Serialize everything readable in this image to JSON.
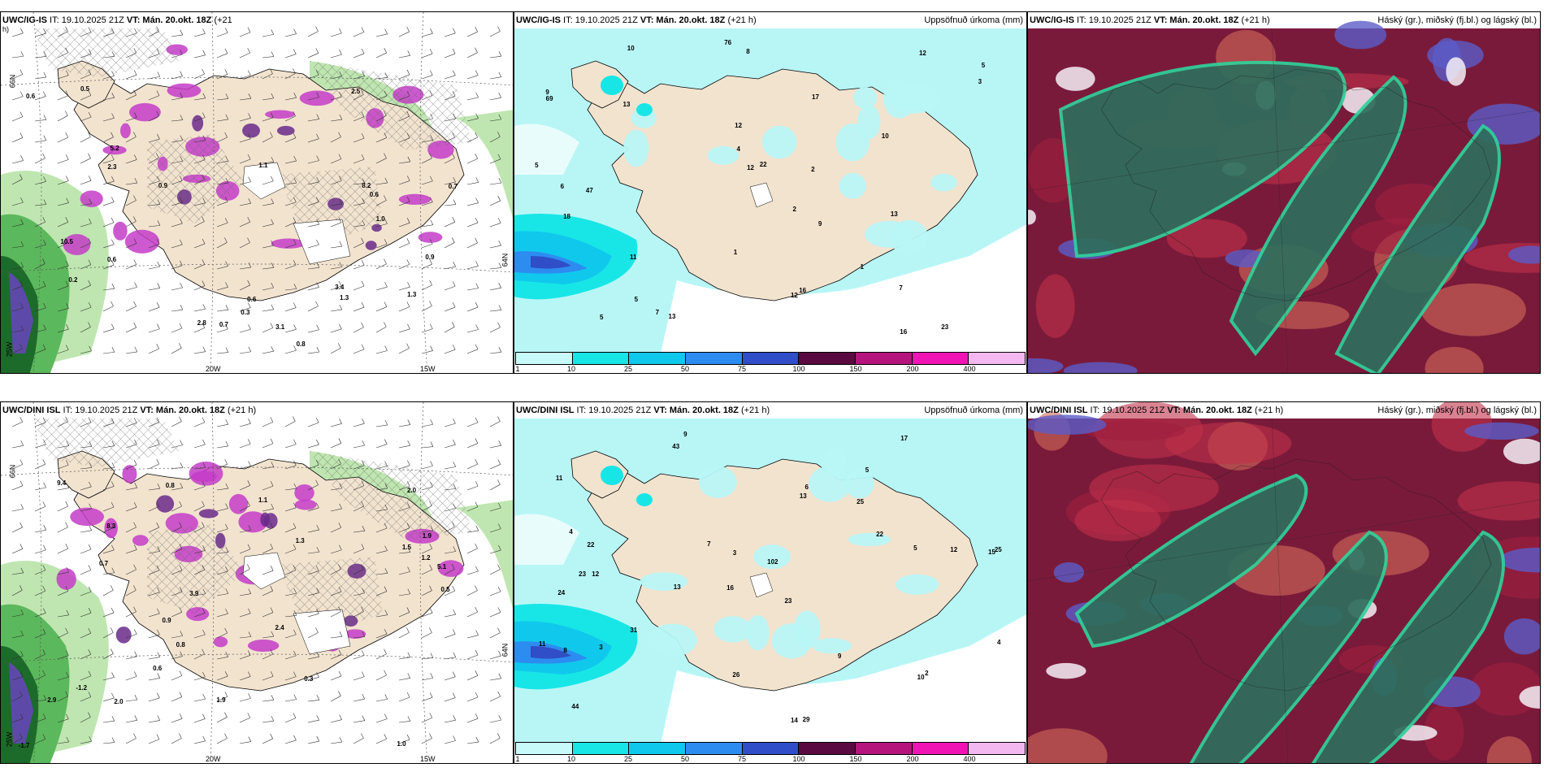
{
  "panels": [
    {
      "id": "p1",
      "header_model": "UWC/IG-IS",
      "header_it": "IT: 19.10.2025 21Z",
      "header_vt": "VT: Mán. 20.okt. 18Z",
      "header_lead": "(+21",
      "header_lead_cont": "h)",
      "right_title": "",
      "kind": "wind",
      "lon_labels": [
        "20W",
        "15W"
      ],
      "lat_labels": [
        "66N",
        "64N"
      ],
      "left_lon": "25W"
    },
    {
      "id": "p2",
      "header_model": "UWC/IG-IS",
      "header_it": "IT: 19.10.2025 21Z",
      "header_vt": "VT: Mán. 20.okt. 18Z",
      "header_lead": "(+21 h)",
      "right_title": "Uppsöfnuð úrkoma (mm)",
      "kind": "precip"
    },
    {
      "id": "p3",
      "header_model": "UWC/IG-IS",
      "header_it": "IT: 19.10.2025 21Z",
      "header_vt": "VT: Mán. 20.okt. 18Z",
      "header_lead": "(+21 h)",
      "right_title": "Háský (gr.), miðský (fj.bl.) og lágský (bl.)",
      "kind": "cloud"
    },
    {
      "id": "p4",
      "header_model": "UWC/DINI ISL",
      "header_it": "IT: 19.10.2025 21Z",
      "header_vt": "VT: Mán. 20.okt. 18Z",
      "header_lead": "(+21 h)",
      "right_title": "",
      "kind": "wind",
      "lon_labels": [
        "20W",
        "15W"
      ],
      "lat_labels": [
        "66N",
        "64N"
      ],
      "left_lon": "25W"
    },
    {
      "id": "p5",
      "header_model": "UWC/DINI ISL",
      "header_it": "IT: 19.10.2025 21Z",
      "header_vt": "VT: Mán. 20.okt. 18Z",
      "header_lead": "(+21 h)",
      "right_title": "Uppsöfnuð úrkoma (mm)",
      "kind": "precip"
    },
    {
      "id": "p6",
      "header_model": "UWC/DINI ISL",
      "header_it": "IT: 19.10.2025 21Z",
      "header_vt": "VT: Mán. 20.okt. 18Z",
      "header_lead": "(+21 h)",
      "right_title": "Háský (gr.), miðský (fj.bl.) og lágský (bl.)",
      "kind": "cloud"
    }
  ],
  "precip_legend": {
    "ticks": [
      "1",
      "10",
      "25",
      "50",
      "75",
      "100",
      "150",
      "200",
      "400"
    ],
    "colors": [
      "#c8fafa",
      "#18e6e6",
      "#10c8ec",
      "#2d8cf0",
      "#2f4ec8",
      "#5a0a40",
      "#b4147c",
      "#f014b4",
      "#f4b8f0"
    ]
  },
  "precip_values_top": [
    "5",
    "8",
    "10",
    "5",
    "9",
    "23",
    "47",
    "17",
    "12",
    "12",
    "22",
    "13",
    "76",
    "69",
    "13",
    "11",
    "16",
    "6",
    "2",
    "1",
    "1",
    "7",
    "3",
    "4",
    "5",
    "12",
    "9",
    "10",
    "13",
    "12",
    "18",
    "16",
    "2",
    "5",
    "7"
  ],
  "precip_values_bottom": [
    "9",
    "5",
    "15",
    "16",
    "23",
    "12",
    "11",
    "25",
    "24",
    "13",
    "102",
    "44",
    "43",
    "13",
    "14",
    "29",
    "26",
    "17",
    "22",
    "31",
    "22",
    "23",
    "25",
    "12",
    "11",
    "4",
    "3",
    "5",
    "2",
    "8",
    "10",
    "6",
    "3",
    "7",
    "9",
    "4"
  ],
  "wind_values_top": [
    "2.8",
    "0.6",
    "1.1",
    "0.6",
    "0.7",
    "0.2",
    "0.3",
    "10.5",
    "8.2",
    "5.2",
    "0.6",
    "1.3",
    "0.7",
    "0.8",
    "2.5",
    "3.1",
    "3.4",
    "1.3",
    "0.9",
    "0.6",
    "0.5",
    "1.0",
    "2.3",
    "0.9"
  ],
  "wind_values_bottom": [
    "0.5",
    "1.1",
    "1.9",
    "0.3",
    "0.6",
    "1.5",
    "2.0",
    "3.9",
    "2.9",
    "-1.7",
    "-1.2",
    "0.8",
    "0.9",
    "1.0",
    "9.4",
    "8.3",
    "1.2",
    "2.4",
    "5.1",
    "1.3",
    "0.7",
    "1.9",
    "0.8",
    "2.0"
  ],
  "colors": {
    "land": "#f2e3cf",
    "sea_precip": "#b8f6f6",
    "cloud_dark": "#7a1a3a",
    "cloud_green": "#2f6e5c",
    "cloud_teal": "#2fd29a",
    "cloud_blue": "#5b5cc8",
    "wind_green": "#4aa04a",
    "wind_purple": "#c43cc8"
  }
}
